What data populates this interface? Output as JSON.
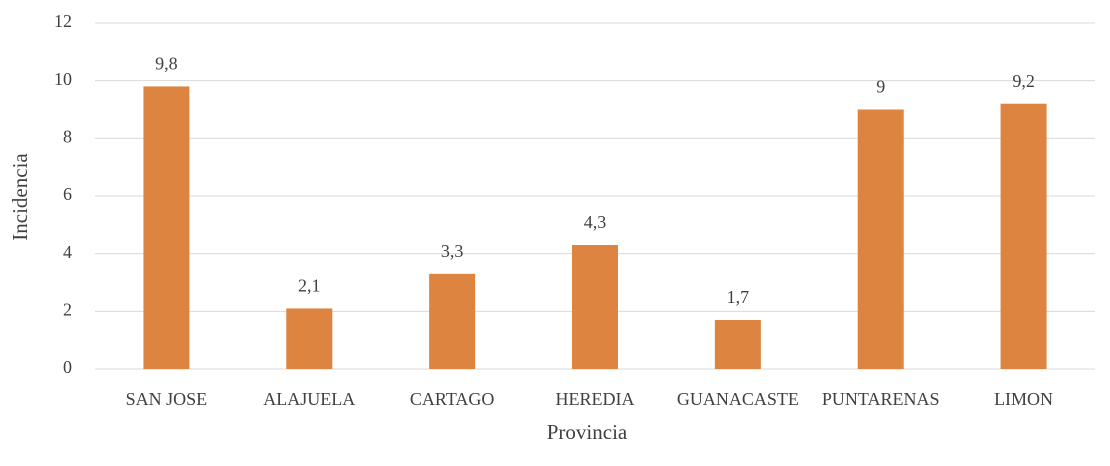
{
  "chart_data": {
    "type": "bar",
    "x_label": "Provincia",
    "y_label": "Incidencia",
    "categories": [
      "SAN JOSE",
      "ALAJUELA",
      "CARTAGO",
      "HEREDIA",
      "GUANACASTE",
      "PUNTARENAS",
      "LIMON"
    ],
    "values": [
      9.8,
      2.1,
      3.3,
      4.3,
      1.7,
      9,
      9.2
    ],
    "value_labels": [
      "9,8",
      "2,1",
      "3,3",
      "4,3",
      "1,7",
      "9",
      "9,2"
    ],
    "color": "#dd8440",
    "ylim": [
      0,
      12
    ],
    "yticks": [
      0,
      2,
      4,
      6,
      8,
      10,
      12
    ],
    "grid": true
  }
}
